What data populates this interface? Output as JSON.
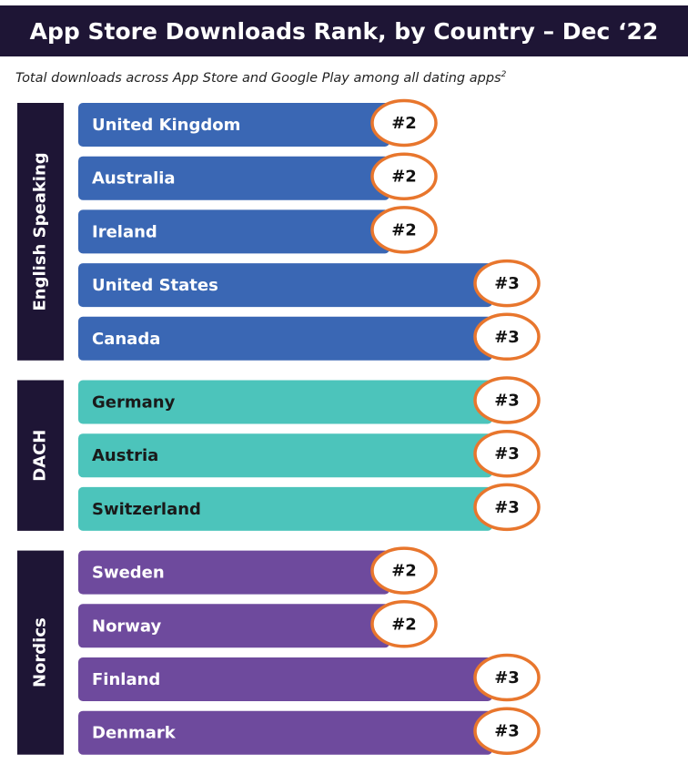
{
  "title": "App Store Downloads Rank, by Country – Dec ‘22",
  "subtitle": "Total downloads across App Store and Google Play among all dating apps",
  "subtitle_footnote": "2",
  "colors": {
    "title_bg": "#1e1535",
    "group_bg": "#1e1535",
    "english": "#3a67b4",
    "dach": "#4cc4bb",
    "nordics": "#6e4a9d",
    "circle_border": "#e8762d",
    "circle_fill": "#ffffff"
  },
  "chart_data": {
    "type": "bar",
    "orientation": "horizontal",
    "value_prefix": "#",
    "groups": [
      {
        "label": "English Speaking",
        "color": "#3a67b4",
        "text_color": "#ffffff",
        "items": [
          {
            "country": "United Kingdom",
            "rank": 2
          },
          {
            "country": "Australia",
            "rank": 2
          },
          {
            "country": "Ireland",
            "rank": 2
          },
          {
            "country": "United States",
            "rank": 3
          },
          {
            "country": "Canada",
            "rank": 3
          }
        ]
      },
      {
        "label": "DACH",
        "color": "#4cc4bb",
        "text_color": "#1a1a1a",
        "items": [
          {
            "country": "Germany",
            "rank": 3
          },
          {
            "country": "Austria",
            "rank": 3
          },
          {
            "country": "Switzerland",
            "rank": 3
          }
        ]
      },
      {
        "label": "Nordics",
        "color": "#6e4a9d",
        "text_color": "#ffffff",
        "items": [
          {
            "country": "Sweden",
            "rank": 2
          },
          {
            "country": "Norway",
            "rank": 2
          },
          {
            "country": "Finland",
            "rank": 3
          },
          {
            "country": "Denmark",
            "rank": 3
          }
        ]
      }
    ]
  }
}
